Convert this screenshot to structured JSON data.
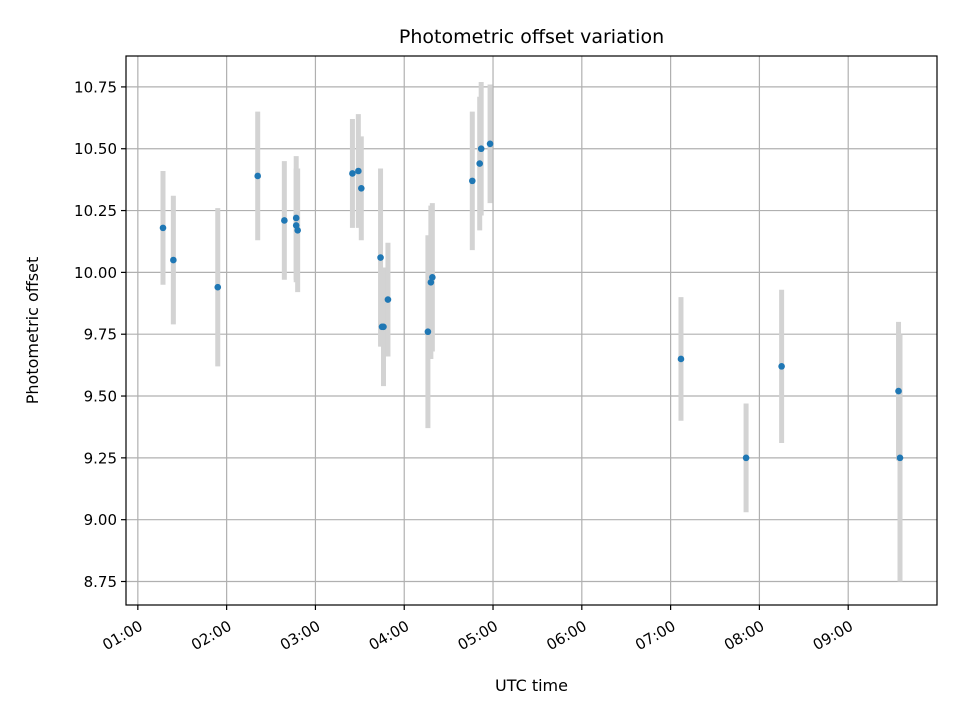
{
  "chart_data": {
    "type": "scatter",
    "title": "Photometric offset variation",
    "xlabel": "UTC time",
    "ylabel": "Photometric offset",
    "grid": true,
    "xlim": [
      "00:52",
      "10:00"
    ],
    "ylim": [
      8.655,
      10.875
    ],
    "x_ticks": [
      "01:00",
      "02:00",
      "03:00",
      "04:00",
      "05:00",
      "06:00",
      "07:00",
      "08:00",
      "09:00"
    ],
    "y_ticks": [
      "8.75",
      "9.00",
      "9.25",
      "9.50",
      "9.75",
      "10.00",
      "10.25",
      "10.50",
      "10.75"
    ],
    "colors": {
      "point": "#1f77b4",
      "errorbar": "#d3d3d3",
      "grid": "#b0b0b0"
    },
    "points": [
      {
        "x": "01:17",
        "y": 10.18,
        "err": 0.23
      },
      {
        "x": "01:24",
        "y": 10.05,
        "err": 0.26
      },
      {
        "x": "01:54",
        "y": 9.94,
        "err": 0.32
      },
      {
        "x": "02:21",
        "y": 10.39,
        "err": 0.26
      },
      {
        "x": "02:39",
        "y": 10.21,
        "err": 0.24
      },
      {
        "x": "02:47",
        "y": 10.22,
        "err": 0.25
      },
      {
        "x": "02:47",
        "y": 10.19,
        "err": 0.23
      },
      {
        "x": "02:48",
        "y": 10.17,
        "err": 0.25
      },
      {
        "x": "03:25",
        "y": 10.4,
        "err": 0.22
      },
      {
        "x": "03:29",
        "y": 10.41,
        "err": 0.23
      },
      {
        "x": "03:31",
        "y": 10.34,
        "err": 0.21
      },
      {
        "x": "03:44",
        "y": 10.06,
        "err": 0.36
      },
      {
        "x": "03:45",
        "y": 9.78,
        "err": 0.08
      },
      {
        "x": "03:46",
        "y": 9.78,
        "err": 0.24
      },
      {
        "x": "03:49",
        "y": 9.89,
        "err": 0.23
      },
      {
        "x": "04:16",
        "y": 9.76,
        "err": 0.39
      },
      {
        "x": "04:18",
        "y": 9.96,
        "err": 0.31
      },
      {
        "x": "04:19",
        "y": 9.98,
        "err": 0.3
      },
      {
        "x": "04:46",
        "y": 10.37,
        "err": 0.28
      },
      {
        "x": "04:51",
        "y": 10.44,
        "err": 0.27
      },
      {
        "x": "04:52",
        "y": 10.5,
        "err": 0.27
      },
      {
        "x": "04:58",
        "y": 10.52,
        "err": 0.24
      },
      {
        "x": "07:07",
        "y": 9.65,
        "err": 0.25
      },
      {
        "x": "07:51",
        "y": 9.25,
        "err": 0.22
      },
      {
        "x": "08:15",
        "y": 9.62,
        "err": 0.31
      },
      {
        "x": "09:34",
        "y": 9.52,
        "err": 0.28
      },
      {
        "x": "09:35",
        "y": 9.25,
        "err": 0.5
      }
    ]
  }
}
